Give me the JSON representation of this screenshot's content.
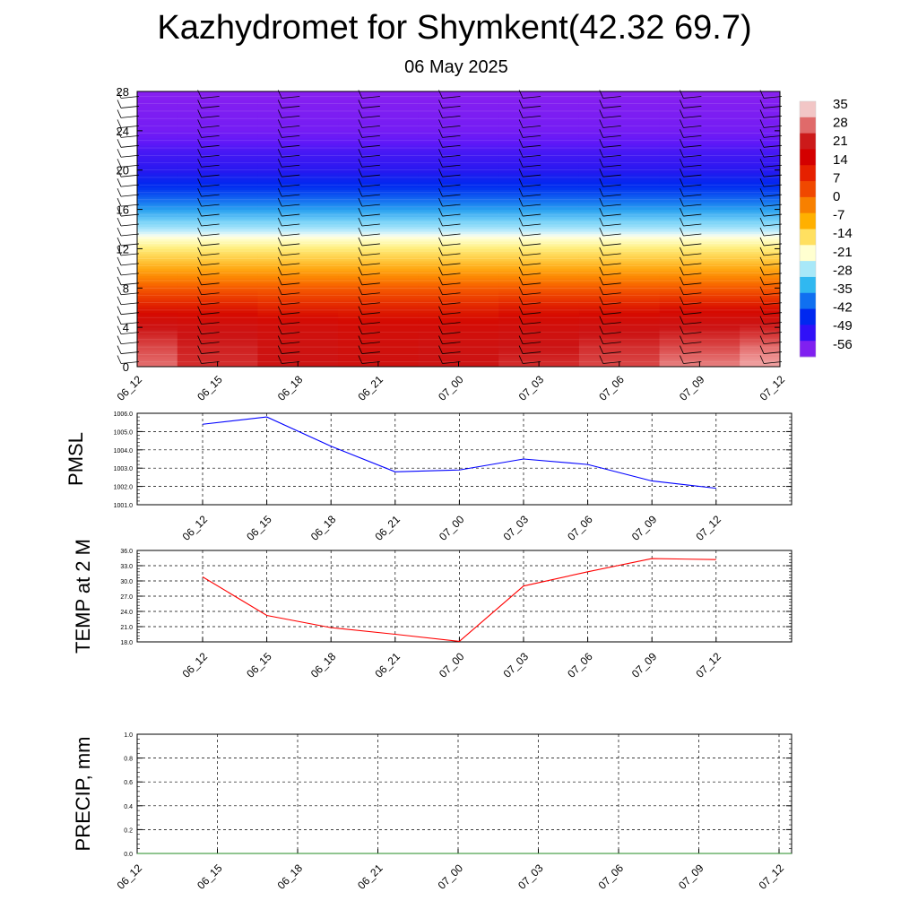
{
  "header": {
    "title": "Kazhydromet for Shymkent(42.32 69.7)",
    "date": "06 May 2025"
  },
  "chart_data": [
    {
      "type": "heatmap",
      "x_ticks": [
        "06_12",
        "06_15",
        "06_18",
        "06_21",
        "07_00",
        "07_03",
        "07_06",
        "07_09",
        "07_12"
      ],
      "y_ticks": [
        "0",
        "4",
        "8",
        "12",
        "16",
        "20",
        "24",
        "28"
      ],
      "ylim": [
        0,
        28
      ],
      "colorbar": {
        "labels": [
          "35",
          "28",
          "21",
          "14",
          "7",
          "0",
          "-7",
          "-14",
          "-21",
          "-28",
          "-35",
          "-42",
          "-49",
          "-56"
        ],
        "colors": [
          "#f2c6c6",
          "#e06a6a",
          "#cc1a1a",
          "#d40000",
          "#e62000",
          "#f04800",
          "#f88000",
          "#ffb000",
          "#ffe060",
          "#ffffd0",
          "#a8e8f8",
          "#30b8f0",
          "#1070f0",
          "#0028f0",
          "#3010f8",
          "#8020f0"
        ]
      },
      "wind_barbs": true,
      "rows": [
        {
          "y": 0,
          "v": [
            33,
            29,
            27,
            26,
            27,
            29,
            31,
            34,
            36
          ]
        },
        {
          "y": 2,
          "v": [
            31,
            28,
            26,
            25,
            26,
            27,
            29,
            31,
            33
          ]
        },
        {
          "y": 4,
          "v": [
            27,
            26,
            25,
            24,
            24,
            25,
            26,
            27,
            28
          ]
        },
        {
          "y": 6,
          "v": [
            20,
            20,
            19,
            19,
            19,
            20,
            20,
            21,
            21
          ]
        },
        {
          "y": 8,
          "v": [
            12,
            12,
            12,
            12,
            12,
            12,
            12,
            12,
            12
          ]
        },
        {
          "y": 10,
          "v": [
            2,
            2,
            2,
            2,
            2,
            2,
            2,
            2,
            2
          ]
        },
        {
          "y": 12,
          "v": [
            -8,
            -8,
            -8,
            -8,
            -8,
            -8,
            -8,
            -8,
            -8
          ]
        },
        {
          "y": 13,
          "v": [
            -13,
            -13,
            -13,
            -13,
            -13,
            -13,
            -13,
            -13,
            -13
          ]
        },
        {
          "y": 14,
          "v": [
            -25,
            -25,
            -25,
            -25,
            -25,
            -25,
            -25,
            -25,
            -25
          ]
        },
        {
          "y": 16,
          "v": [
            -38,
            -38,
            -38,
            -38,
            -38,
            -38,
            -38,
            -38,
            -38
          ]
        },
        {
          "y": 18,
          "v": [
            -48,
            -48,
            -48,
            -48,
            -48,
            -48,
            -48,
            -48,
            -48
          ]
        },
        {
          "y": 20,
          "v": [
            -55,
            -55,
            -55,
            -55,
            -55,
            -55,
            -55,
            -55,
            -55
          ]
        },
        {
          "y": 22,
          "v": [
            -58,
            -58,
            -58,
            -58,
            -58,
            -58,
            -58,
            -58,
            -58
          ]
        },
        {
          "y": 24,
          "v": [
            -63,
            -63,
            -63,
            -63,
            -63,
            -63,
            -63,
            -63,
            -63
          ]
        },
        {
          "y": 28,
          "v": [
            -66,
            -66,
            -66,
            -66,
            -66,
            -66,
            -66,
            -66,
            -66
          ]
        }
      ]
    },
    {
      "type": "line",
      "ylabel": "PMSL",
      "categories": [
        "06_12",
        "06_15",
        "06_18",
        "06_21",
        "07_00",
        "07_03",
        "07_06",
        "07_09",
        "07_12"
      ],
      "values": [
        1005.4,
        1005.8,
        1004.2,
        1002.8,
        1002.9,
        1003.5,
        1003.2,
        1002.3,
        1001.9
      ],
      "ylim": [
        1001.0,
        1006.0
      ],
      "yticks": [
        "1001.0",
        "1002.0",
        "1003.0",
        "1004.0",
        "1005.0",
        "1006.0"
      ],
      "color": "#0000ff"
    },
    {
      "type": "line",
      "ylabel": "TEMP at 2 M",
      "categories": [
        "06_12",
        "06_15",
        "06_18",
        "06_21",
        "07_00",
        "07_03",
        "07_06",
        "07_09",
        "07_12"
      ],
      "values": [
        30.8,
        23.2,
        20.8,
        19.5,
        18.1,
        29.0,
        31.8,
        34.4,
        34.2
      ],
      "ylim": [
        18.0,
        36.0
      ],
      "yticks": [
        "18.0",
        "21.0",
        "24.0",
        "27.0",
        "30.0",
        "33.0",
        "36.0"
      ],
      "color": "#ff0000"
    },
    {
      "type": "line",
      "ylabel": "PRECIP, mm",
      "categories": [
        "06_12",
        "06_15",
        "06_18",
        "06_21",
        "07_00",
        "07_03",
        "07_06",
        "07_09",
        "07_12"
      ],
      "values": [
        0,
        0,
        0,
        0,
        0,
        0,
        0,
        0,
        0
      ],
      "ylim": [
        0.0,
        1.0
      ],
      "yticks": [
        "0.0",
        "0.2",
        "0.4",
        "0.6",
        "0.8",
        "1.0"
      ],
      "color": "#228b22"
    }
  ]
}
